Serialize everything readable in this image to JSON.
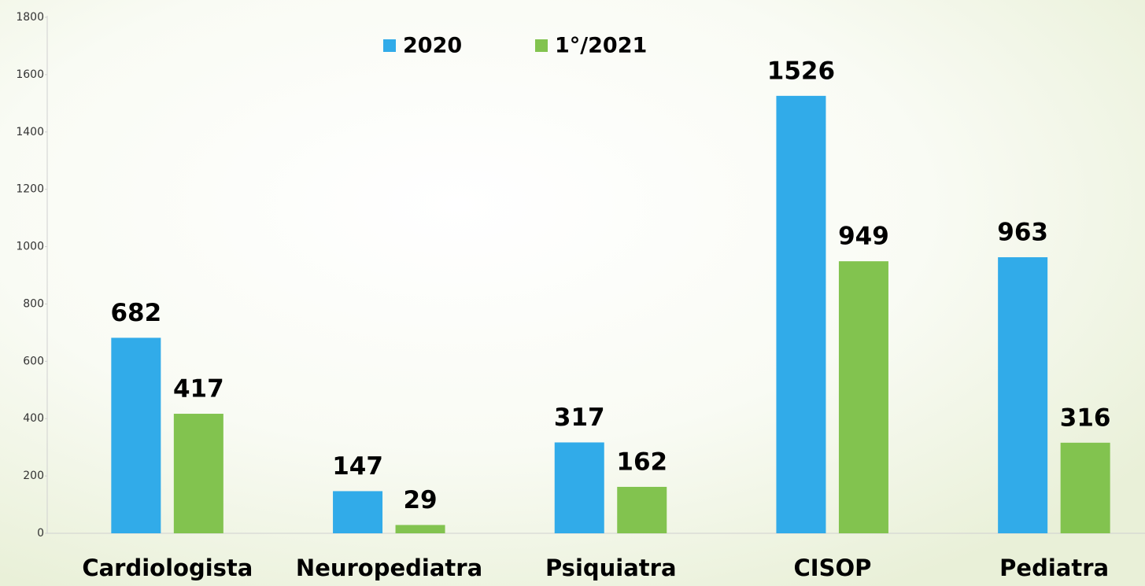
{
  "chart_data": {
    "type": "bar",
    "categories": [
      "Cardiologista",
      "Neuropediatra",
      "Psiquiatra",
      "CISOP",
      "Pediatra"
    ],
    "series": [
      {
        "name": "2020",
        "color": "#31abe9",
        "values": [
          682,
          147,
          317,
          1526,
          963
        ]
      },
      {
        "name": "1°/2021",
        "color": "#82c34f",
        "values": [
          417,
          29,
          162,
          949,
          316
        ]
      }
    ],
    "ylim": [
      0,
      1800
    ],
    "yticks": [
      0,
      200,
      400,
      600,
      800,
      1000,
      1200,
      1400,
      1600,
      1800
    ],
    "legend": "top"
  }
}
